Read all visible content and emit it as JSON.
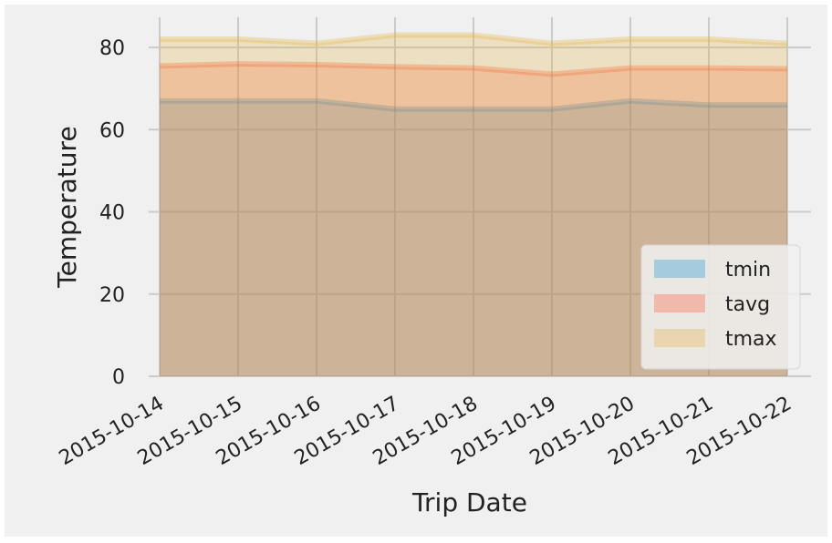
{
  "chart_data": {
    "type": "area",
    "title": "",
    "xlabel": "Trip Date",
    "ylabel": "Temperature",
    "x": [
      "2015-10-14",
      "2015-10-15",
      "2015-10-16",
      "2015-10-17",
      "2015-10-18",
      "2015-10-19",
      "2015-10-20",
      "2015-10-21",
      "2015-10-22"
    ],
    "series": [
      {
        "name": "tmin",
        "values": [
          67,
          67,
          67,
          65,
          65,
          65,
          67,
          66,
          66
        ],
        "color": "#008fd5"
      },
      {
        "name": "tavg",
        "values": [
          75.5,
          76,
          75.8,
          75.3,
          75.0,
          73.5,
          75.0,
          75.0,
          74.8
        ],
        "color": "#fc4f30"
      },
      {
        "name": "tmax",
        "values": [
          82,
          82,
          81,
          83,
          83,
          81,
          82,
          82,
          81
        ],
        "color": "#e5ae38"
      }
    ],
    "yticks": [
      0,
      20,
      40,
      60,
      80
    ],
    "ylim": [
      0,
      86
    ],
    "grid": true,
    "stacked": false,
    "legend": "lower-right",
    "style": "fivethirtyeight"
  }
}
